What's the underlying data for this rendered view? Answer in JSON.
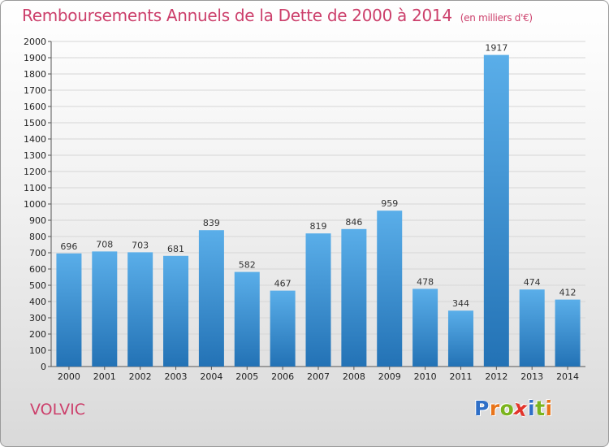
{
  "title": "Remboursements Annuels de la Dette de 2000 à 2014",
  "subtitle": "(en milliers d'€)",
  "commune": "VOLVIC",
  "logo": {
    "letters": [
      "P",
      "r",
      "o",
      "x",
      "i",
      "t",
      "i"
    ],
    "colors": [
      "#2f6fc7",
      "#e8741a",
      "#7bb41e",
      "#e2342b",
      "#2f6fc7",
      "#7bb41e",
      "#e8741a"
    ]
  },
  "colors": {
    "title": "#cc3f6b",
    "bar_top": "#5aaee9",
    "bar_bottom": "#2372b5",
    "gridline": "#d6d6d6"
  },
  "chart_data": {
    "type": "bar",
    "categories": [
      "2000",
      "2001",
      "2002",
      "2003",
      "2004",
      "2005",
      "2006",
      "2007",
      "2008",
      "2009",
      "2010",
      "2011",
      "2012",
      "2013",
      "2014"
    ],
    "values": [
      696,
      708,
      703,
      681,
      839,
      582,
      467,
      819,
      846,
      959,
      478,
      344,
      1917,
      474,
      412
    ],
    "ylim": [
      0,
      2000
    ],
    "yticks": [
      0,
      100,
      200,
      300,
      400,
      500,
      600,
      700,
      800,
      900,
      1000,
      1100,
      1200,
      1300,
      1400,
      1500,
      1600,
      1700,
      1800,
      1900,
      2000
    ],
    "grid": true,
    "legend": "none"
  }
}
